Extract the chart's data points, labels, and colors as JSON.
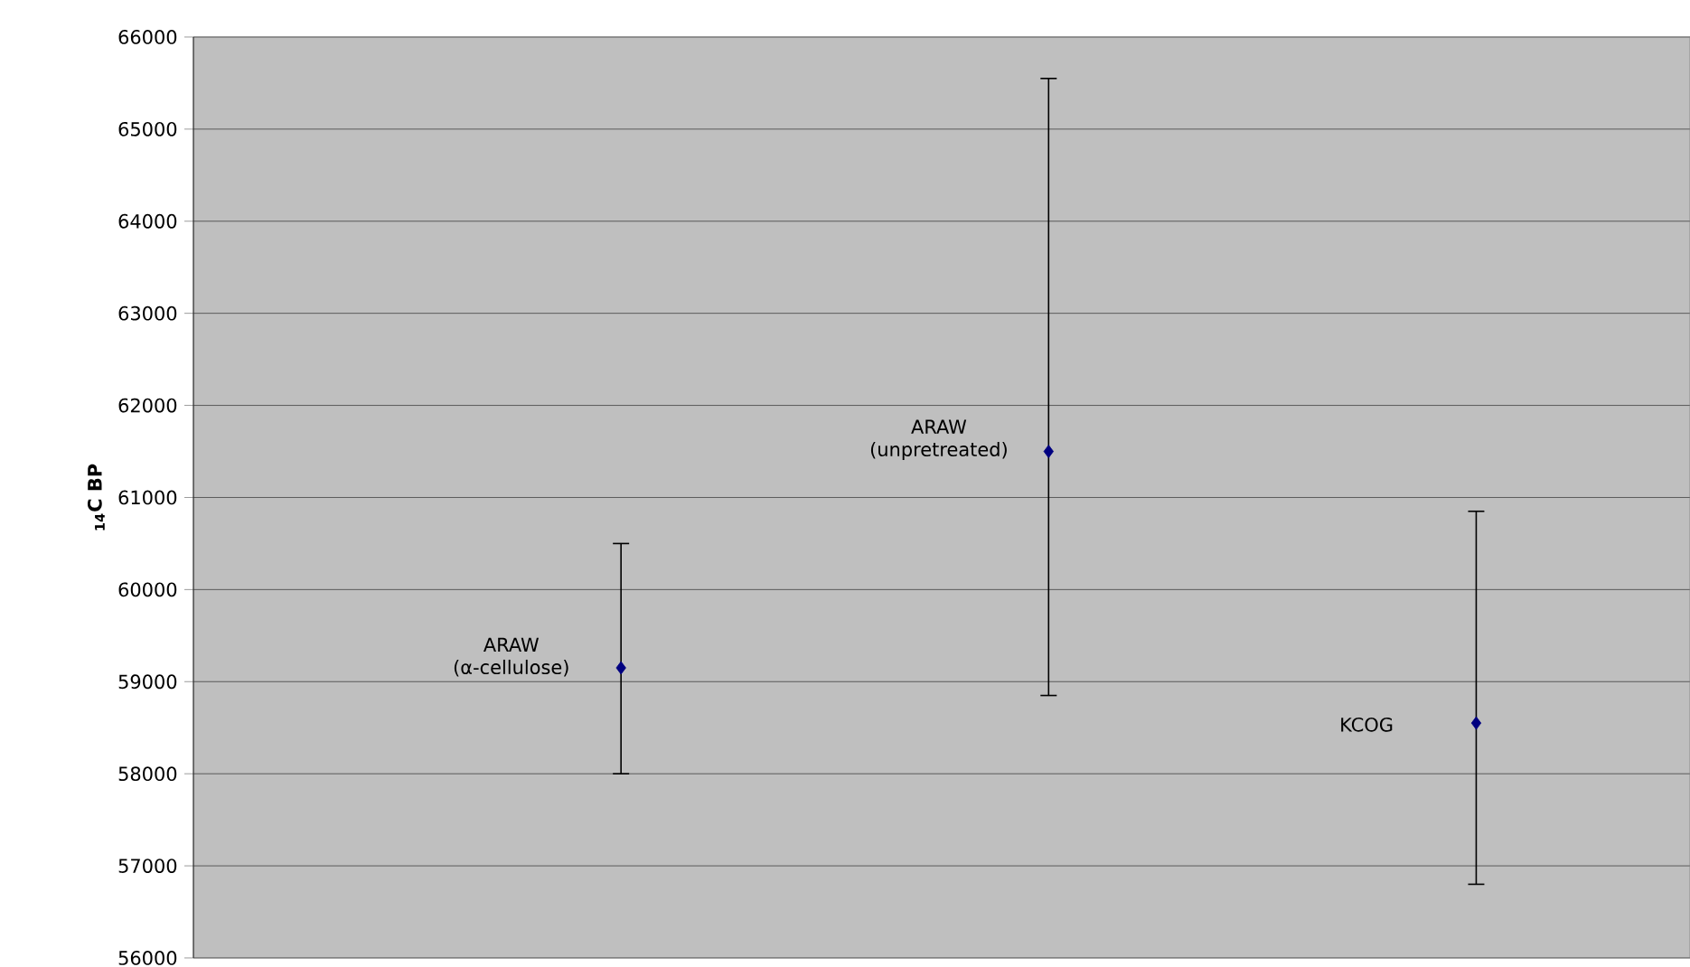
{
  "chart_data": {
    "type": "scatter",
    "ylabel": "$_{14}$C BP",
    "categories": [
      null,
      null,
      null
    ],
    "series": [
      {
        "color": "#000080",
        "values": [
          59150,
          61500,
          58550
        ],
        "errors": [
          [
            58000,
            60500
          ],
          [
            58850,
            65550
          ],
          [
            56800,
            60850
          ]
        ]
      }
    ],
    "annotations": [
      "ARAW (α-cellulose)",
      "ARAW (unpretreated)",
      "KCOG"
    ],
    "ylim": [
      56000,
      66000
    ],
    "yticks": [
      56000,
      57000,
      58000,
      59000,
      60000,
      61000,
      62000,
      63000,
      64000,
      65000,
      66000
    ],
    "grid": "y",
    "marker": "diamond"
  }
}
